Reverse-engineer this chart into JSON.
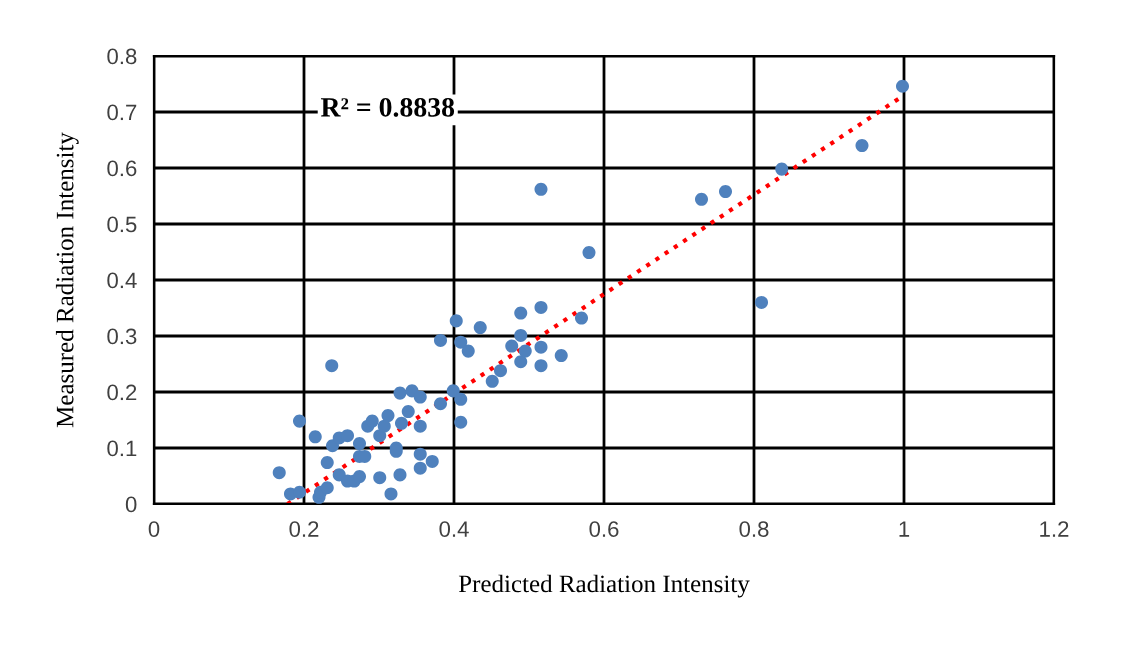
{
  "chart_data": {
    "type": "scatter",
    "xlabel": "Predicted Radiation Intensity",
    "ylabel": "Measured Radiation Intensity",
    "annotations": [
      "R² = 0.8838"
    ],
    "xlim": [
      0,
      1.2
    ],
    "xticks": [
      0,
      0.2,
      0.4,
      0.6,
      0.8,
      1,
      1.2
    ],
    "ylim": [
      0,
      0.8
    ],
    "yticks": [
      0,
      0.1,
      0.2,
      0.3,
      0.4,
      0.5,
      0.6,
      0.7,
      0.8
    ],
    "grid": true,
    "series": [
      {
        "marker": "circle",
        "color": "#4f81bd",
        "x": [
          0.167,
          0.182,
          0.194,
          0.194,
          0.215,
          0.22,
          0.222,
          0.231,
          0.231,
          0.237,
          0.238,
          0.247,
          0.247,
          0.258,
          0.258,
          0.267,
          0.274,
          0.274,
          0.274,
          0.281,
          0.285,
          0.291,
          0.301,
          0.301,
          0.307,
          0.312,
          0.316,
          0.323,
          0.323,
          0.328,
          0.328,
          0.33,
          0.339,
          0.344,
          0.355,
          0.355,
          0.355,
          0.355,
          0.371,
          0.382,
          0.382,
          0.399,
          0.403,
          0.409,
          0.409,
          0.409,
          0.419,
          0.435,
          0.451,
          0.462,
          0.477,
          0.489,
          0.489,
          0.489,
          0.495,
          0.516,
          0.516,
          0.516,
          0.543,
          0.57,
          0.516,
          0.58,
          0.73,
          0.762,
          0.837,
          0.81,
          0.944,
          0.998
        ],
        "values": [
          0.056,
          0.018,
          0.021,
          0.148,
          0.12,
          0.012,
          0.021,
          0.029,
          0.074,
          0.247,
          0.104,
          0.118,
          0.052,
          0.122,
          0.041,
          0.041,
          0.108,
          0.085,
          0.049,
          0.085,
          0.139,
          0.148,
          0.047,
          0.122,
          0.139,
          0.158,
          0.018,
          0.1,
          0.094,
          0.052,
          0.198,
          0.144,
          0.165,
          0.202,
          0.191,
          0.139,
          0.089,
          0.064,
          0.076,
          0.179,
          0.292,
          0.202,
          0.327,
          0.289,
          0.146,
          0.187,
          0.273,
          0.315,
          0.219,
          0.238,
          0.282,
          0.301,
          0.341,
          0.254,
          0.273,
          0.351,
          0.28,
          0.247,
          0.265,
          0.332,
          0.562,
          0.449,
          0.544,
          0.558,
          0.598,
          0.36,
          0.64,
          0.746
        ]
      },
      {
        "type": "line",
        "marker": "none",
        "color": "#ff0000",
        "line_style": "dotted",
        "x": [
          0.178,
          1.0
        ],
        "values": [
          0,
          0.73
        ]
      }
    ]
  }
}
